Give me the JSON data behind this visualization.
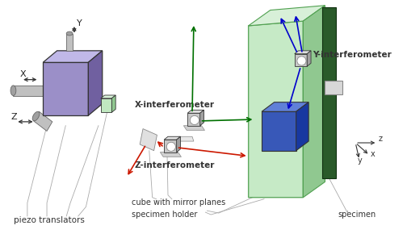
{
  "bg_color": "#ffffff",
  "piezo_label": "piezo translators",
  "x_interf_label": "X-interferometer",
  "y_interf_label": "Y-interferometer",
  "z_interf_label": "Z-interferometer",
  "cube_label": "cube with mirror planes",
  "holder_label": "specimen holder",
  "specimen_label": "specimen",
  "purple": "#9b8fc8",
  "purple_dark": "#7060a0",
  "purple_top": "#c0b8e8",
  "green_light": "#c0e8c0",
  "green_mid": "#90c890",
  "green_dark": "#2a5a2a",
  "blue_cube": "#3858b8",
  "blue_cube_top": "#6080d8",
  "blue_cube_side": "#1838a0",
  "gray_face": "#c8c8c8",
  "gray_top": "#e0e0e0",
  "gray_side": "#a0a0a0",
  "gray_light": "#c0c0c0",
  "red_arrow": "#cc1800",
  "green_arrow": "#007000",
  "blue_arrow": "#0000cc",
  "dark_color": "#222222"
}
